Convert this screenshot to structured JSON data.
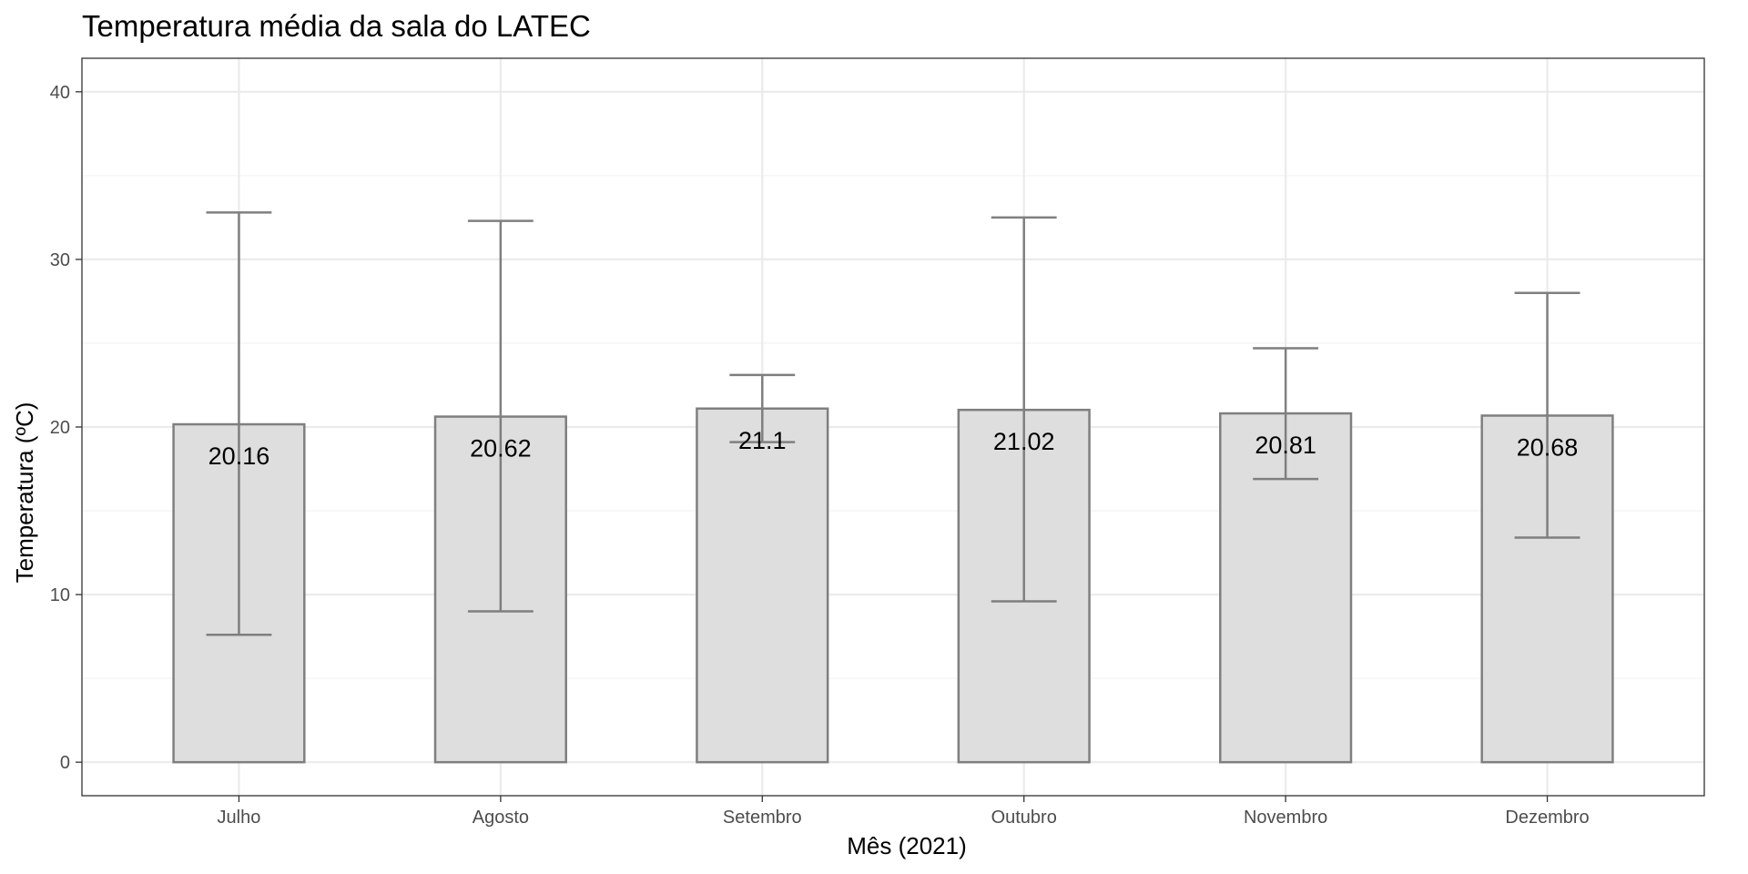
{
  "chart_data": {
    "type": "bar",
    "title": "Temperatura média da sala do LATEC",
    "xlabel": "Mês (2021)",
    "ylabel": "Temperatura (ºC)",
    "ylim": [
      -2,
      42
    ],
    "yticks": [
      0,
      10,
      20,
      30,
      40
    ],
    "categories": [
      "Julho",
      "Agosto",
      "Setembro",
      "Outubro",
      "Novembro",
      "Dezembro"
    ],
    "values": [
      20.16,
      20.62,
      21.1,
      21.02,
      20.81,
      20.68
    ],
    "data_labels": [
      "20.16",
      "20.62",
      "21.1",
      "21.02",
      "20.81",
      "20.68"
    ],
    "error_low": [
      7.6,
      9.0,
      19.1,
      9.6,
      16.9,
      13.4
    ],
    "error_high": [
      32.8,
      32.3,
      23.1,
      32.5,
      24.7,
      28.0
    ],
    "grid": true,
    "legend": "none",
    "colors": {
      "bar_fill": "#dedede",
      "bar_stroke": "#7f7f7f"
    }
  }
}
